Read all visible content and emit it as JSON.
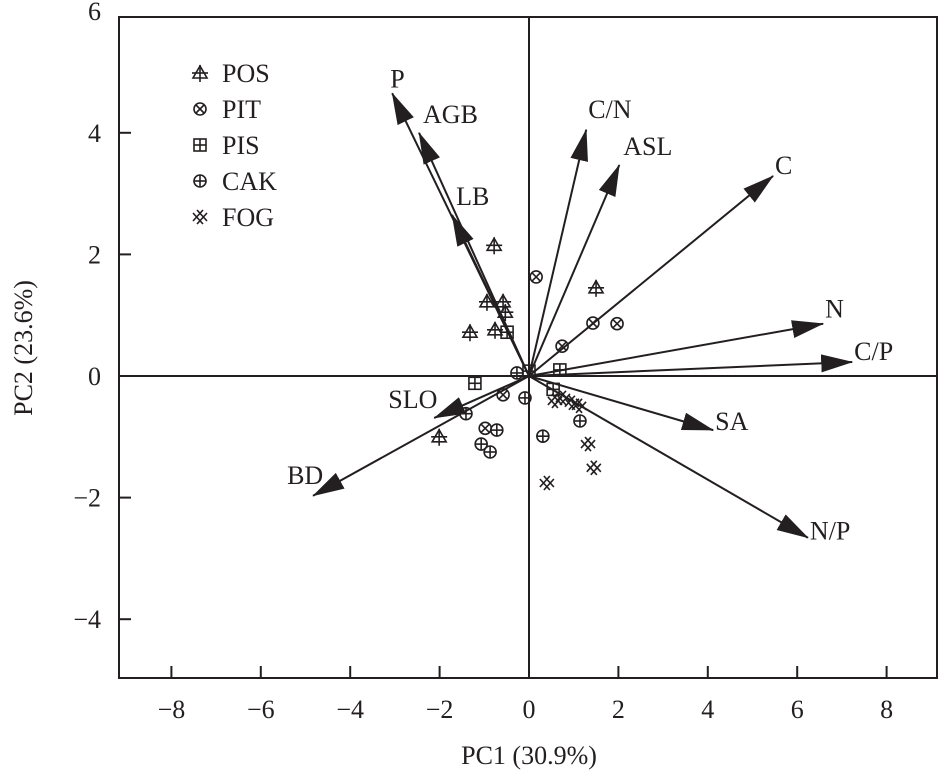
{
  "chart_data": {
    "type": "scatter",
    "subtype": "pca-biplot",
    "title": "",
    "xlabel": "PC1 (30.9%)",
    "ylabel": "PC2 (23.6%)",
    "xlim": [
      -9.3,
      9.0
    ],
    "ylim": [
      -5.0,
      5.9
    ],
    "xticks": [
      -8,
      -6,
      -4,
      -2,
      0,
      2,
      4,
      6,
      8
    ],
    "yticks": [
      -4,
      -2,
      0,
      2,
      4,
      6
    ],
    "xtick_labels": [
      "−8",
      "−6",
      "−4",
      "−2",
      "0",
      "2",
      "4",
      "6",
      "8"
    ],
    "ytick_labels": [
      "−4",
      "−2",
      "0",
      "2",
      "4",
      "6"
    ],
    "grid": false,
    "zero_lines": true,
    "legend_position": "top-left",
    "colors": {
      "ink": "#231f20"
    },
    "series": [
      {
        "name": "POS",
        "marker": "triangle-plus",
        "points": [
          [
            -0.78,
            2.15
          ],
          [
            -0.94,
            1.22
          ],
          [
            -0.58,
            1.22
          ],
          [
            -0.53,
            1.05
          ],
          [
            -1.32,
            0.72
          ],
          [
            -0.76,
            0.76
          ],
          [
            1.5,
            1.45
          ],
          [
            -2.01,
            -1.0
          ]
        ]
      },
      {
        "name": "PIT",
        "marker": "circle-x",
        "points": [
          [
            0.16,
            1.63
          ],
          [
            1.43,
            0.87
          ],
          [
            1.97,
            0.86
          ],
          [
            0.74,
            0.49
          ],
          [
            -0.58,
            -0.31
          ],
          [
            -0.98,
            -0.86
          ]
        ]
      },
      {
        "name": "PIS",
        "marker": "square-plus",
        "points": [
          [
            -0.49,
            0.72
          ],
          [
            0.69,
            0.1
          ],
          [
            -1.21,
            -0.12
          ],
          [
            0.0,
            0.08
          ],
          [
            0.54,
            -0.22
          ]
        ]
      },
      {
        "name": "CAK",
        "marker": "circle-plus",
        "points": [
          [
            -0.27,
            0.05
          ],
          [
            -0.09,
            -0.36
          ],
          [
            -1.41,
            -0.62
          ],
          [
            -0.72,
            -0.89
          ],
          [
            -1.07,
            -1.12
          ],
          [
            -0.87,
            -1.25
          ],
          [
            0.31,
            -0.99
          ],
          [
            1.14,
            -0.74
          ]
        ]
      },
      {
        "name": "FOG",
        "marker": "double-x",
        "points": [
          [
            0.58,
            -0.41
          ],
          [
            0.76,
            -0.36
          ],
          [
            0.96,
            -0.44
          ],
          [
            1.12,
            -0.49
          ],
          [
            1.32,
            -1.12
          ],
          [
            1.45,
            -1.51
          ],
          [
            0.4,
            -1.76
          ]
        ]
      }
    ],
    "vectors": [
      {
        "name": "P",
        "x": -3.06,
        "y": 4.65,
        "label_anchor": "above"
      },
      {
        "name": "AGB",
        "x": -2.46,
        "y": 4.0,
        "label_anchor": "right-up"
      },
      {
        "name": "LB",
        "x": -1.72,
        "y": 2.65,
        "label_anchor": "right-up"
      },
      {
        "name": "C/N",
        "x": 1.28,
        "y": 4.05,
        "label_anchor": "above"
      },
      {
        "name": "ASL",
        "x": 2.02,
        "y": 3.47,
        "label_anchor": "right-up"
      },
      {
        "name": "C",
        "x": 5.46,
        "y": 3.29,
        "label_anchor": "right-up"
      },
      {
        "name": "N",
        "x": 6.58,
        "y": 0.86,
        "label_anchor": "right-up"
      },
      {
        "name": "C/P",
        "x": 7.23,
        "y": 0.23,
        "label_anchor": "right-up"
      },
      {
        "name": "SA",
        "x": 4.12,
        "y": -0.89,
        "label_anchor": "right-up"
      },
      {
        "name": "N/P",
        "x": 6.24,
        "y": -2.66,
        "label_anchor": "right"
      },
      {
        "name": "SLO",
        "x": -2.12,
        "y": -0.69,
        "label_anchor": "left-up"
      },
      {
        "name": "BD",
        "x": -4.83,
        "y": -1.97,
        "label_anchor": "left-up"
      }
    ]
  }
}
